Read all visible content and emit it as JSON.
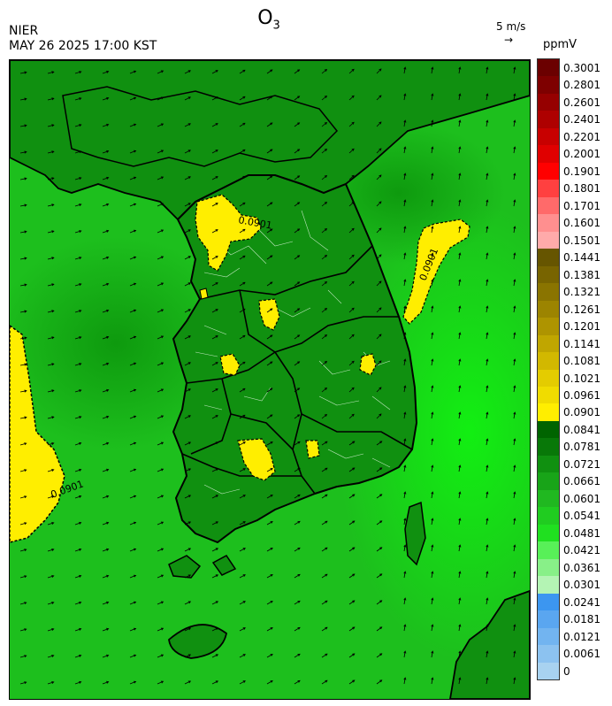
{
  "header": {
    "title_main": "O",
    "title_sub": "3",
    "agency": "NIER",
    "datetime": "MAY 26 2025 17:00 KST",
    "wind_reference": "5 m/s",
    "wind_reference_arrow": "→",
    "unit": "ppmV"
  },
  "legend": {
    "labels": [
      "0.3001",
      "0.2801",
      "0.2601",
      "0.2401",
      "0.2201",
      "0.2001",
      "0.1901",
      "0.1801",
      "0.1701",
      "0.1601",
      "0.1501",
      "0.1441",
      "0.1381",
      "0.1321",
      "0.1261",
      "0.1201",
      "0.1141",
      "0.1081",
      "0.1021",
      "0.0961",
      "0.0901",
      "0.0841",
      "0.0781",
      "0.0721",
      "0.0661",
      "0.0601",
      "0.0541",
      "0.0481",
      "0.0421",
      "0.0361",
      "0.0301",
      "0.0241",
      "0.0181",
      "0.0121",
      "0.0061",
      "0"
    ],
    "colors": [
      "#6b0000",
      "#7e0000",
      "#960000",
      "#ae0000",
      "#c80000",
      "#e00000",
      "#ff0000",
      "#ff4040",
      "#ff6a6a",
      "#ff8f8f",
      "#ffaaaa",
      "#665500",
      "#786400",
      "#8a7400",
      "#9c8400",
      "#ae9400",
      "#c0a600",
      "#d2b800",
      "#e4cc00",
      "#f0dc00",
      "#ffee00",
      "#006400",
      "#087808",
      "#109010",
      "#18a418",
      "#20b820",
      "#20cc20",
      "#20e020",
      "#58f058",
      "#88f088",
      "#b4f4b4",
      "#3c96f0",
      "#5aa6f0",
      "#72b4f0",
      "#8cc2f0",
      "#a8d2f0"
    ]
  },
  "contour_labels": {
    "seoul": "0.0901",
    "east": "0.0901",
    "west": "0.0901"
  },
  "colors": {
    "ocean": "#1dbf1d",
    "land_dark": "#109010",
    "high": "#ffee00",
    "border": "#000000"
  }
}
